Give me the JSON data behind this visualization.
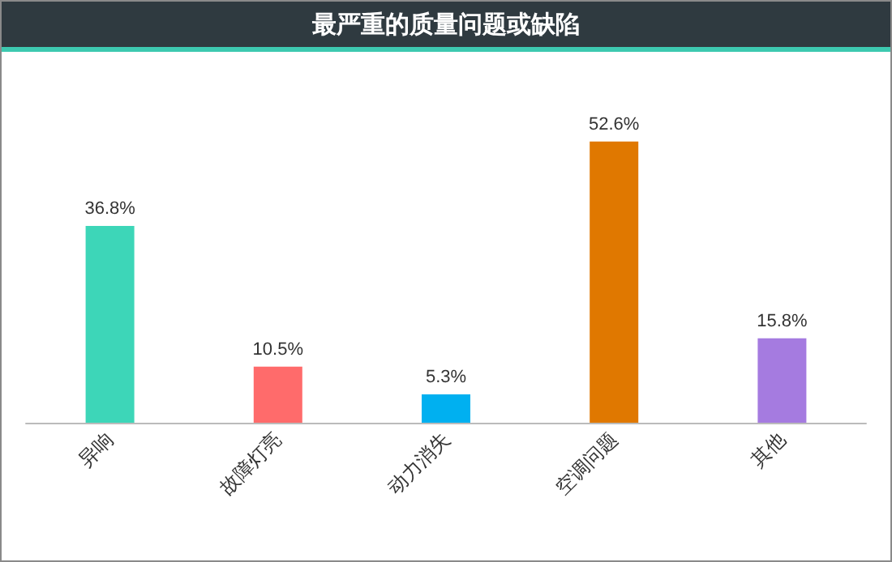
{
  "chart_data": {
    "type": "bar",
    "title": "最严重的质量问题或缺陷",
    "categories": [
      "异响",
      "故障灯亮",
      "动力消失",
      "空调问题",
      "其他"
    ],
    "values": [
      36.8,
      10.5,
      5.3,
      52.6,
      15.8
    ],
    "colors": [
      "#3dd6b8",
      "#ff6b6b",
      "#00b0f0",
      "#e07800",
      "#a57be0"
    ],
    "value_labels": [
      "36.8%",
      "10.5%",
      "5.3%",
      "52.6%",
      "15.8%"
    ]
  }
}
